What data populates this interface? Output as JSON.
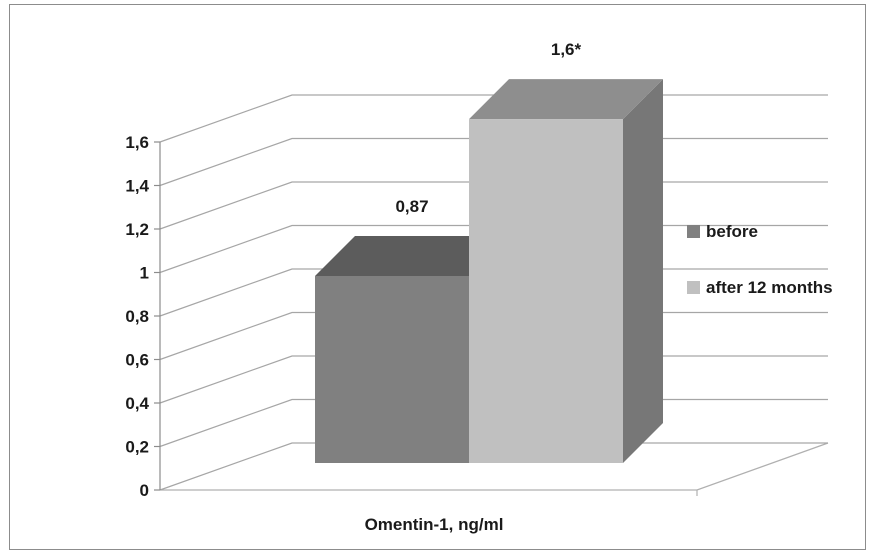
{
  "chart_data": {
    "type": "bar",
    "style": "3d",
    "title": "",
    "xlabel": "Omentin-1, ng/ml",
    "ylabel": "",
    "categories": [
      "Omentin-1, ng/ml"
    ],
    "series": [
      {
        "name": "before",
        "values": [
          0.87
        ],
        "data_label": "0,87",
        "color": "#808080"
      },
      {
        "name": "after 12 months",
        "values": [
          1.6
        ],
        "data_label": "1,6*",
        "color": "#c0c0c0"
      }
    ],
    "ylim": [
      0,
      1.6
    ],
    "y_ticks": [
      0,
      0.2,
      0.4,
      0.6,
      0.8,
      1,
      1.2,
      1.4,
      1.6
    ],
    "y_tick_labels": [
      "0",
      "0,2",
      "0,4",
      "0,6",
      "0,8",
      "1",
      "1,2",
      "1,4",
      "1,6"
    ],
    "grid": true,
    "legend": "right"
  }
}
